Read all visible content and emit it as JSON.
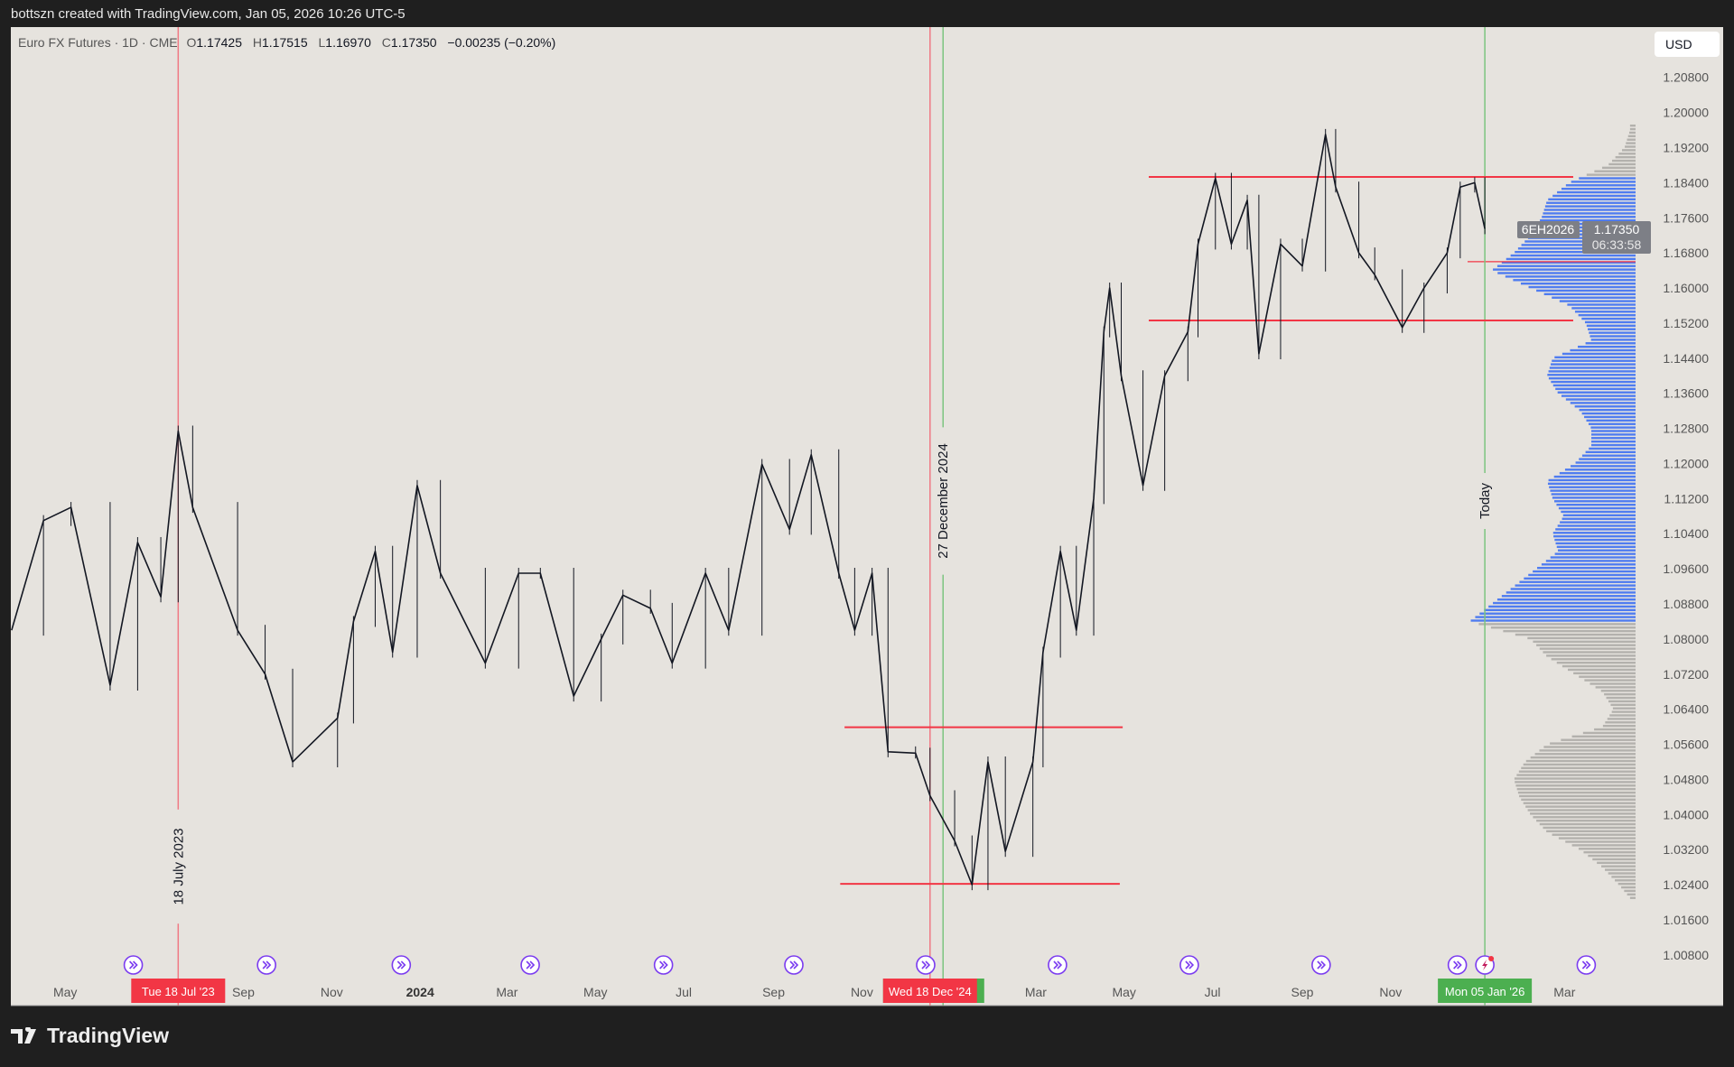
{
  "header": {
    "attribution": "bottszn created with TradingView.com, Jan 05, 2026 10:26 UTC-5"
  },
  "legend": {
    "symbol": "Euro FX Futures · 1D · CME",
    "open_label": "O",
    "open": "1.17425",
    "high_label": "H",
    "high": "1.17515",
    "low_label": "L",
    "low": "1.16970",
    "close_label": "C",
    "close": "1.17350",
    "change": "−0.00235 (−0.20%)"
  },
  "currency_button": "USD",
  "footer": {
    "logo_text": "TradingView"
  },
  "colors": {
    "background": "#e6e3de",
    "red": "#f23645",
    "green": "#4caf50",
    "profile_value_area": "#4f7cf0",
    "profile_outside": "#b3b1ad",
    "price": "#131722"
  },
  "chart_data": {
    "type": "candlestick",
    "title": "",
    "ylim": [
      1.004,
      1.212
    ],
    "y_ticks": [
      "1.20800",
      "1.20000",
      "1.19200",
      "1.18400",
      "1.17600",
      "1.16800",
      "1.16000",
      "1.15200",
      "1.14400",
      "1.13600",
      "1.12800",
      "1.12000",
      "1.11200",
      "1.10400",
      "1.09600",
      "1.08800",
      "1.08000",
      "1.07200",
      "1.06400",
      "1.05600",
      "1.04800",
      "1.04000",
      "1.03200",
      "1.02400",
      "1.01600",
      "1.00800"
    ],
    "x_ticks": [
      {
        "label": "May",
        "date": "2023-05-01"
      },
      {
        "label": "Sep",
        "date": "2023-09-01"
      },
      {
        "label": "Nov",
        "date": "2023-11-01"
      },
      {
        "label": "2024",
        "date": "2024-01-01",
        "bold": true
      },
      {
        "label": "Mar",
        "date": "2024-03-01"
      },
      {
        "label": "May",
        "date": "2024-05-01"
      },
      {
        "label": "Jul",
        "date": "2024-07-01"
      },
      {
        "label": "Sep",
        "date": "2024-09-01"
      },
      {
        "label": "Nov",
        "date": "2024-11-01"
      },
      {
        "label": "Mar",
        "date": "2025-03-01"
      },
      {
        "label": "May",
        "date": "2025-05-01"
      },
      {
        "label": "Jul",
        "date": "2025-07-01"
      },
      {
        "label": "Sep",
        "date": "2025-09-01"
      },
      {
        "label": "Nov",
        "date": "2025-11-01"
      },
      {
        "label": "Mar",
        "date": "2026-03-01"
      }
    ],
    "closes": [
      [
        "2023-03-25",
        1.082
      ],
      [
        "2023-04-16",
        1.107
      ],
      [
        "2023-05-05",
        1.11
      ],
      [
        "2023-06-01",
        1.0695
      ],
      [
        "2023-06-20",
        1.102
      ],
      [
        "2023-07-06",
        1.0896
      ],
      [
        "2023-07-18",
        1.1274
      ],
      [
        "2023-07-28",
        1.11
      ],
      [
        "2023-08-28",
        1.082
      ],
      [
        "2023-09-16",
        1.072
      ],
      [
        "2023-10-05",
        1.052
      ],
      [
        "2023-11-05",
        1.062
      ],
      [
        "2023-11-16",
        1.084
      ],
      [
        "2023-12-01",
        1.1
      ],
      [
        "2023-12-13",
        1.077
      ],
      [
        "2023-12-30",
        1.115
      ],
      [
        "2024-01-15",
        1.095
      ],
      [
        "2024-02-15",
        1.0745
      ],
      [
        "2024-03-09",
        1.095
      ],
      [
        "2024-03-24",
        1.095
      ],
      [
        "2024-04-16",
        1.067
      ],
      [
        "2024-05-05",
        1.08
      ],
      [
        "2024-05-20",
        1.09
      ],
      [
        "2024-06-08",
        1.087
      ],
      [
        "2024-06-23",
        1.0745
      ],
      [
        "2024-07-16",
        1.095
      ],
      [
        "2024-08-01",
        1.082
      ],
      [
        "2024-08-24",
        1.1198
      ],
      [
        "2024-09-12",
        1.105
      ],
      [
        "2024-09-27",
        1.122
      ],
      [
        "2024-10-16",
        1.095
      ],
      [
        "2024-10-27",
        1.082
      ],
      [
        "2024-11-08",
        1.095
      ],
      [
        "2024-11-19",
        1.0543
      ],
      [
        "2024-12-08",
        1.054
      ],
      [
        "2024-12-18",
        1.0443
      ],
      [
        "2025-01-04",
        1.034
      ],
      [
        "2025-01-16",
        1.024
      ],
      [
        "2025-01-27",
        1.052
      ],
      [
        "2025-02-08",
        1.0316
      ],
      [
        "2025-02-27",
        1.052
      ],
      [
        "2025-03-06",
        1.077
      ],
      [
        "2025-03-18",
        1.1
      ],
      [
        "2025-03-29",
        1.082
      ],
      [
        "2025-04-10",
        1.112
      ],
      [
        "2025-04-17",
        1.15
      ],
      [
        "2025-04-21",
        1.16
      ],
      [
        "2025-04-29",
        1.14
      ],
      [
        "2025-05-14",
        1.115
      ],
      [
        "2025-05-29",
        1.14
      ],
      [
        "2025-06-14",
        1.15
      ],
      [
        "2025-06-21",
        1.17
      ],
      [
        "2025-07-03",
        1.185
      ],
      [
        "2025-07-14",
        1.17
      ],
      [
        "2025-07-25",
        1.18
      ],
      [
        "2025-08-02",
        1.145
      ],
      [
        "2025-08-17",
        1.17
      ],
      [
        "2025-09-01",
        1.165
      ],
      [
        "2025-09-17",
        1.195
      ],
      [
        "2025-09-24",
        1.183
      ],
      [
        "2025-10-10",
        1.168
      ],
      [
        "2025-10-21",
        1.163
      ],
      [
        "2025-11-09",
        1.151
      ],
      [
        "2025-11-24",
        1.16
      ],
      [
        "2025-12-10",
        1.168
      ],
      [
        "2025-12-19",
        1.183
      ],
      [
        "2025-12-29",
        1.184
      ],
      [
        "2026-01-05",
        1.1735
      ]
    ],
    "horizontal_lines": [
      {
        "price": 1.1853,
        "from": "2025-05-18",
        "to": "2026-03-07",
        "color": "#f23645"
      },
      {
        "price": 1.1526,
        "from": "2025-05-18",
        "to": "2026-03-07",
        "color": "#f23645"
      },
      {
        "price": 1.0599,
        "from": "2024-10-20",
        "to": "2025-04-30",
        "color": "#f23645"
      },
      {
        "price": 1.0242,
        "from": "2024-10-17",
        "to": "2025-04-28",
        "color": "#f23645"
      }
    ],
    "vertical_lines": [
      {
        "date": "2023-07-18",
        "color": "#f23645",
        "label": "18 July 2023",
        "axis_label": "Tue 18 Jul '23"
      },
      {
        "date": "2024-12-18",
        "color": "#f23645",
        "label": "",
        "axis_label": "Wed 18 Dec '24"
      },
      {
        "date": "2024-12-27",
        "color": "#4caf50",
        "label": "27 December 2024",
        "axis_label": ""
      },
      {
        "date": "2026-01-05",
        "color": "#4caf50",
        "label": "Today",
        "axis_label": "Mon 05 Jan '26"
      }
    ],
    "event_markers": [
      {
        "date": "2023-06-17",
        "icon": "event-arrow-icon"
      },
      {
        "date": "2023-09-17",
        "icon": "event-arrow-icon"
      },
      {
        "date": "2023-12-19",
        "icon": "event-arrow-icon"
      },
      {
        "date": "2024-03-17",
        "icon": "event-arrow-icon"
      },
      {
        "date": "2024-06-17",
        "icon": "event-arrow-icon"
      },
      {
        "date": "2024-09-15",
        "icon": "event-arrow-icon"
      },
      {
        "date": "2024-12-15",
        "icon": "event-arrow-icon"
      },
      {
        "date": "2025-03-16",
        "icon": "event-arrow-icon"
      },
      {
        "date": "2025-06-15",
        "icon": "event-arrow-icon"
      },
      {
        "date": "2025-09-14",
        "icon": "event-arrow-icon"
      },
      {
        "date": "2025-12-17",
        "icon": "event-arrow-icon"
      },
      {
        "date": "2026-01-05",
        "icon": "lightning-icon"
      },
      {
        "date": "2026-03-16",
        "icon": "event-arrow-icon"
      }
    ],
    "volume_profile": {
      "value_area": [
        1.0835,
        1.1853
      ],
      "poc_price": 1.166,
      "levels": [
        [
          1.197,
          5
        ],
        [
          1.196,
          5
        ],
        [
          1.192,
          10
        ],
        [
          1.188,
          25
        ],
        [
          1.184,
          60
        ],
        [
          1.18,
          80
        ],
        [
          1.176,
          85
        ],
        [
          1.172,
          95
        ],
        [
          1.168,
          110
        ],
        [
          1.164,
          130
        ],
        [
          1.16,
          95
        ],
        [
          1.156,
          60
        ],
        [
          1.152,
          45
        ],
        [
          1.148,
          40
        ],
        [
          1.144,
          75
        ],
        [
          1.14,
          80
        ],
        [
          1.136,
          70
        ],
        [
          1.132,
          50
        ],
        [
          1.128,
          40
        ],
        [
          1.124,
          40
        ],
        [
          1.12,
          55
        ],
        [
          1.116,
          80
        ],
        [
          1.112,
          75
        ],
        [
          1.108,
          65
        ],
        [
          1.104,
          75
        ],
        [
          1.1,
          70
        ],
        [
          1.096,
          90
        ],
        [
          1.092,
          110
        ],
        [
          1.088,
          130
        ],
        [
          1.084,
          150
        ],
        [
          1.08,
          95
        ],
        [
          1.076,
          80
        ],
        [
          1.072,
          55
        ],
        [
          1.068,
          30
        ],
        [
          1.064,
          20
        ],
        [
          1.06,
          30
        ],
        [
          1.056,
          80
        ],
        [
          1.052,
          100
        ],
        [
          1.048,
          110
        ],
        [
          1.044,
          105
        ],
        [
          1.04,
          95
        ],
        [
          1.036,
          80
        ],
        [
          1.032,
          50
        ],
        [
          1.028,
          30
        ],
        [
          1.024,
          15
        ],
        [
          1.021,
          5
        ]
      ]
    },
    "last_price": {
      "symbol": "6EH2026",
      "price": "1.17350",
      "countdown": "06:33:58"
    }
  }
}
